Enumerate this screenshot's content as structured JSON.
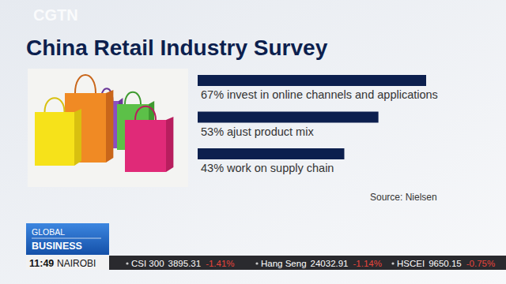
{
  "chart_data": {
    "type": "bar",
    "orientation": "horizontal",
    "title": "China Retail Industry Survey",
    "source": "Source: Nielsen",
    "categories": [
      "invest in online channels and applications",
      "ajust product mix",
      "work on supply chain"
    ],
    "values": [
      67,
      53,
      43
    ],
    "value_labels": [
      "67%",
      "53%",
      "43%"
    ],
    "color": "#0c1f4e",
    "xlim": [
      0,
      67
    ],
    "data_labels": true,
    "tick_labels": false,
    "grid": false
  },
  "watermark": "CGTN",
  "program": {
    "line1": "GLOBAL",
    "line2": "BUSINESS"
  },
  "clock": {
    "time": "11:49",
    "city": "NAIROBI"
  },
  "ticker": [
    {
      "name": "CSI 300",
      "value": "3895.31",
      "change": "-1.41%"
    },
    {
      "name": "Hang Seng",
      "value": "24032.91",
      "change": "-1.14%"
    },
    {
      "name": "HSCEI",
      "value": "9650.15",
      "change": "-0.75%"
    }
  ]
}
